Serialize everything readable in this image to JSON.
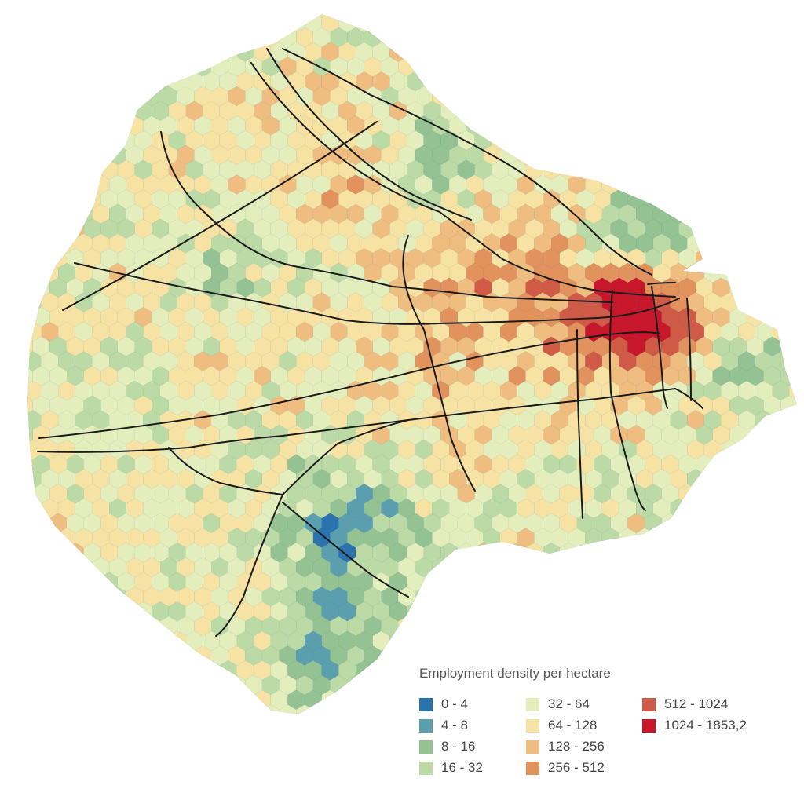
{
  "legend": {
    "title": "Employment density per hectare",
    "classes": [
      {
        "label": "0 - 4",
        "color": "#2b73ad"
      },
      {
        "label": "4 - 8",
        "color": "#5b9fae"
      },
      {
        "label": "8 - 16",
        "color": "#94c292"
      },
      {
        "label": "16 - 32",
        "color": "#bcdaa6"
      },
      {
        "label": "32 - 64",
        "color": "#e4eebd"
      },
      {
        "label": "64 - 128",
        "color": "#f6e3a3"
      },
      {
        "label": "128 - 256",
        "color": "#efbd7f"
      },
      {
        "label": "256 - 512",
        "color": "#e2925c"
      },
      {
        "label": "512 - 1024",
        "color": "#cf5a45"
      },
      {
        "label": "1024 - 1853,2",
        "color": "#c8172a"
      }
    ]
  },
  "map": {
    "hex_grid": "hexagonal cells coloured by employment density class",
    "network": "black transit lines"
  }
}
